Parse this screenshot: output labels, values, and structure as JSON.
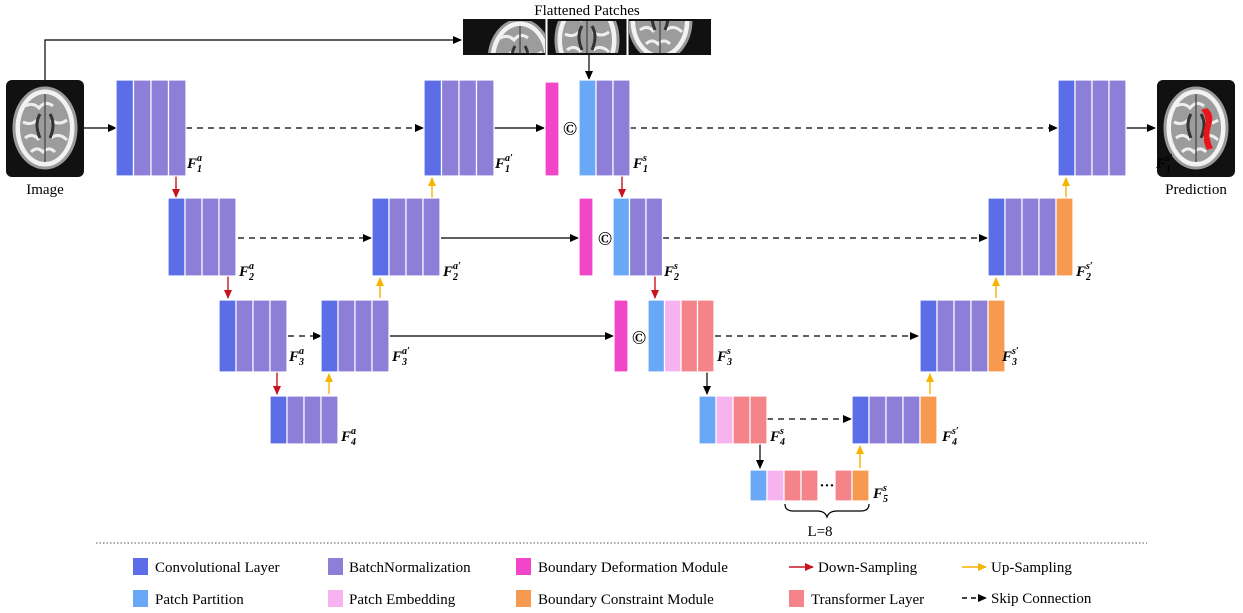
{
  "title": "Flattened Patches",
  "input_label": "Image",
  "output_label": "Prediction",
  "concat_symbol": "©",
  "transformer_ellipsis": "···",
  "transformer_count_label": "L=8",
  "feature_labels": {
    "F1a": {
      "base": "F",
      "sub": "1",
      "sup": "a"
    },
    "F2a": {
      "base": "F",
      "sub": "2",
      "sup": "a"
    },
    "F3a": {
      "base": "F",
      "sub": "3",
      "sup": "a"
    },
    "F4a": {
      "base": "F",
      "sub": "4",
      "sup": "a"
    },
    "F1ap": {
      "base": "F",
      "sub": "1",
      "sup": "a′"
    },
    "F2ap": {
      "base": "F",
      "sub": "2",
      "sup": "a′"
    },
    "F3ap": {
      "base": "F",
      "sub": "3",
      "sup": "a′"
    },
    "F1s": {
      "base": "F",
      "sub": "1",
      "sup": "s"
    },
    "F2s": {
      "base": "F",
      "sub": "2",
      "sup": "s"
    },
    "F3s": {
      "base": "F",
      "sub": "3",
      "sup": "s"
    },
    "F4s": {
      "base": "F",
      "sub": "4",
      "sup": "s"
    },
    "F5s": {
      "base": "F",
      "sub": "5",
      "sup": "s"
    },
    "F1sp": {
      "base": "F",
      "sub": "1",
      "sup": "s′"
    },
    "F2sp": {
      "base": "F",
      "sub": "2",
      "sup": "s′"
    },
    "F3sp": {
      "base": "F",
      "sub": "3",
      "sup": "s′"
    },
    "F4sp": {
      "base": "F",
      "sub": "4",
      "sup": "s′"
    }
  },
  "legend": {
    "conv": {
      "label": "Convolutional Layer",
      "color": "#5b6ee8"
    },
    "bn": {
      "label": "BatchNormalization",
      "color": "#8d7fd8"
    },
    "bdm": {
      "label": "Boundary Deformation Module",
      "color": "#f246c8"
    },
    "down": {
      "label": "Down-Sampling",
      "color": "#c8141e"
    },
    "up": {
      "label": "Up-Sampling",
      "color": "#f5b400"
    },
    "pp": {
      "label": "Patch Partition",
      "color": "#69a7f7"
    },
    "pe": {
      "label": "Patch Embedding",
      "color": "#f7b2f0"
    },
    "bcm": {
      "label": "Boundary Constraint Module",
      "color": "#f79a50"
    },
    "tl": {
      "label": "Transformer Layer",
      "color": "#f5848a"
    },
    "skip": {
      "label": "Skip Connection",
      "color": "#000000"
    }
  }
}
